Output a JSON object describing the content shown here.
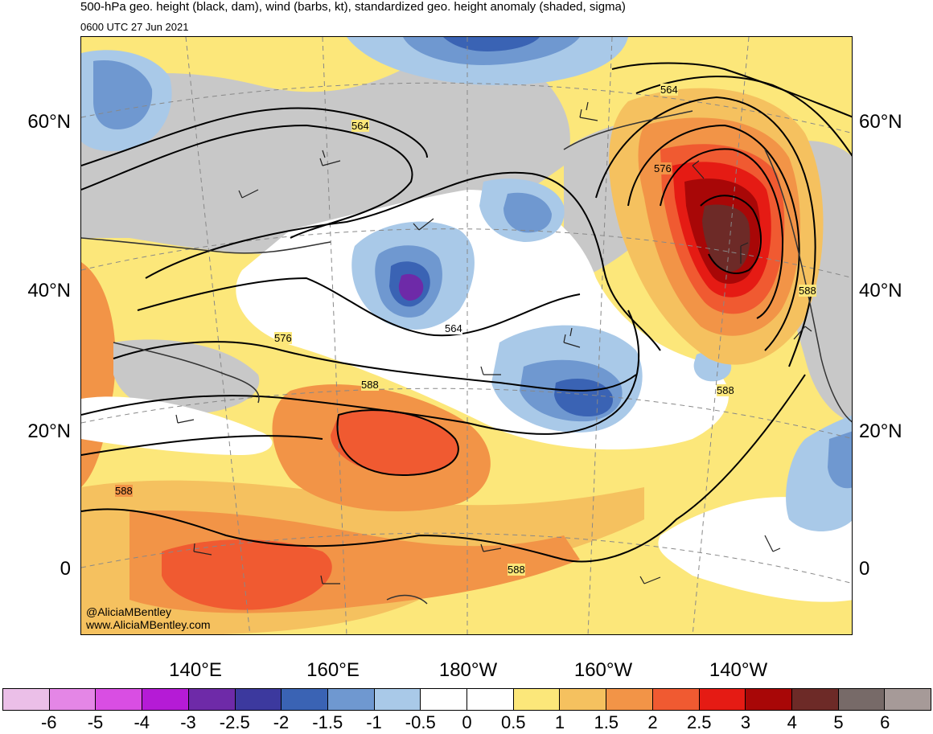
{
  "header": {
    "title": "500-hPa geo. height (black, dam), wind (barbs, kt), standardized geo. height anomaly (shaded, sigma)",
    "valid_time": "0600 UTC 27 Jun 2021"
  },
  "axes": {
    "lat_labels": [
      "60°N",
      "40°N",
      "20°N",
      "0"
    ],
    "lon_labels": [
      "140°E",
      "160°E",
      "180°W",
      "160°W",
      "140°W"
    ]
  },
  "contour_labels": [
    "564",
    "564",
    "564",
    "576",
    "576",
    "588",
    "588",
    "588",
    "588",
    "588"
  ],
  "colorbar": {
    "colors": [
      "#ebbfe8",
      "#e486e6",
      "#d94ee3",
      "#b51bd6",
      "#6e2aa8",
      "#3c399e",
      "#3a63b4",
      "#6f98d0",
      "#a9c9e8",
      "#ffffff",
      "#ffffff",
      "#fce77a",
      "#f5c15f",
      "#f29447",
      "#f05a31",
      "#e51b14",
      "#a80707",
      "#6d2a27",
      "#776a68",
      "#a69a98"
    ],
    "labels": [
      "-6",
      "-5",
      "-4",
      "-3",
      "-2.5",
      "-2",
      "-1.5",
      "-1",
      "-0.5",
      "0",
      "0.5",
      "1",
      "1.5",
      "2",
      "2.5",
      "3",
      "4",
      "5",
      "6"
    ]
  },
  "credits": {
    "handle": "@AliciaMBentley",
    "website": "www.AliciaMBentley.com"
  }
}
